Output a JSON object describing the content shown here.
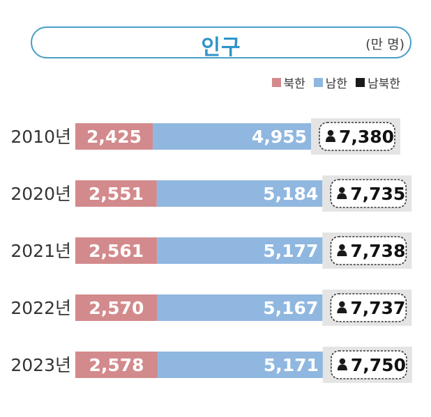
{
  "title": "인구",
  "unit": "(만 명)",
  "colors": {
    "north": "#d38a8c",
    "south": "#8fb7e0",
    "total": "#1a1a1a"
  },
  "legend": [
    {
      "label": "북한",
      "color": "#d38a8c"
    },
    {
      "label": "남한",
      "color": "#8fb7e0"
    },
    {
      "label": "남북한",
      "color": "#1a1a1a"
    }
  ],
  "chart_data": {
    "type": "bar",
    "orientation": "horizontal",
    "stacked": true,
    "categories": [
      "2010년",
      "2020년",
      "2021년",
      "2022년",
      "2023년"
    ],
    "series": [
      {
        "name": "북한",
        "values": [
          2425,
          2551,
          2561,
          2570,
          2578
        ],
        "labels": [
          "2,425",
          "2,551",
          "2,561",
          "2,570",
          "2,578"
        ]
      },
      {
        "name": "남한",
        "values": [
          4955,
          5184,
          5177,
          5167,
          5171
        ],
        "labels": [
          "4,955",
          "5,184",
          "5,177",
          "5,167",
          "5,171"
        ]
      }
    ],
    "totals": {
      "name": "남북한",
      "values": [
        7380,
        7735,
        7738,
        7737,
        7750
      ],
      "labels": [
        "7,380",
        "7,735",
        "7,738",
        "7,737",
        "7,750"
      ]
    },
    "legend": "top-right"
  }
}
